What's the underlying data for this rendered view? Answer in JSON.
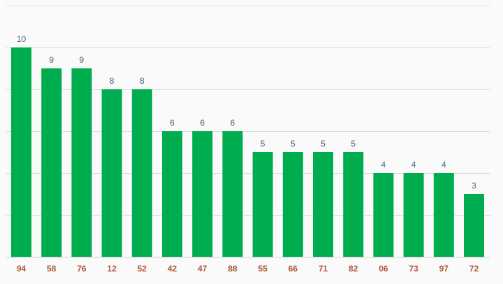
{
  "chart_data": {
    "type": "bar",
    "categories": [
      "94",
      "58",
      "76",
      "12",
      "52",
      "42",
      "47",
      "88",
      "55",
      "66",
      "71",
      "82",
      "06",
      "73",
      "97",
      "72"
    ],
    "values": [
      10,
      9,
      9,
      8,
      8,
      6,
      6,
      6,
      5,
      5,
      5,
      5,
      4,
      4,
      4,
      3
    ],
    "title": "",
    "xlabel": "",
    "ylabel": "",
    "ylim": [
      0,
      12
    ],
    "grid": true,
    "legend": "none"
  },
  "colors": {
    "bar": "#00ad4e",
    "value_label": "#4a6b86",
    "category_label": "#b05a3c",
    "background": "#fafafa"
  }
}
